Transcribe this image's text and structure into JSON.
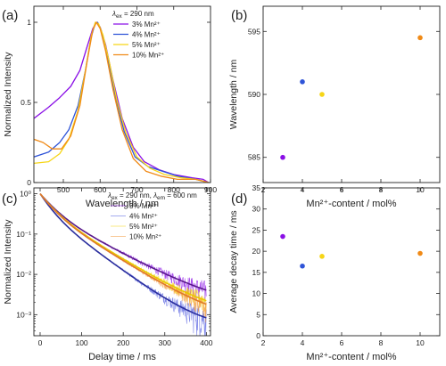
{
  "chart_data": [
    {
      "panel_label": "(a)",
      "type": "line",
      "xlabel": "Wavelength / nm",
      "ylabel": "Normalized Intensity",
      "xlim": [
        420,
        900
      ],
      "ylim": [
        0,
        1.1
      ],
      "x_ticks": [
        500,
        600,
        700,
        800,
        900
      ],
      "y_ticks": [
        0.0,
        0.5,
        1.0
      ],
      "legend_title": "λex = 290 nm",
      "legend_position": "top-right",
      "series": [
        {
          "name": "3% Mn²⁺",
          "color": "#8a10e6",
          "points": [
            [
              420,
              0.4
            ],
            [
              460,
              0.47
            ],
            [
              490,
              0.53
            ],
            [
              520,
              0.6
            ],
            [
              545,
              0.7
            ],
            [
              565,
              0.85
            ],
            [
              580,
              0.96
            ],
            [
              590,
              1.0
            ],
            [
              600,
              0.97
            ],
            [
              615,
              0.86
            ],
            [
              635,
              0.64
            ],
            [
              660,
              0.4
            ],
            [
              690,
              0.22
            ],
            [
              720,
              0.13
            ],
            [
              760,
              0.08
            ],
            [
              800,
              0.05
            ],
            [
              850,
              0.03
            ],
            [
              880,
              0.02
            ],
            [
              895,
              0.0
            ]
          ]
        },
        {
          "name": "4% Mn²⁺",
          "color": "#2f54d8",
          "points": [
            [
              420,
              0.16
            ],
            [
              460,
              0.19
            ],
            [
              490,
              0.25
            ],
            [
              515,
              0.33
            ],
            [
              540,
              0.48
            ],
            [
              560,
              0.7
            ],
            [
              575,
              0.9
            ],
            [
              586,
              0.99
            ],
            [
              593,
              1.0
            ],
            [
              603,
              0.95
            ],
            [
              620,
              0.78
            ],
            [
              640,
              0.55
            ],
            [
              665,
              0.32
            ],
            [
              695,
              0.16
            ],
            [
              730,
              0.1
            ],
            [
              770,
              0.07
            ],
            [
              810,
              0.04
            ],
            [
              860,
              0.02
            ],
            [
              895,
              0.0
            ]
          ]
        },
        {
          "name": "5% Mn²⁺",
          "color": "#f6d516",
          "points": [
            [
              420,
              0.12
            ],
            [
              460,
              0.13
            ],
            [
              490,
              0.18
            ],
            [
              515,
              0.27
            ],
            [
              540,
              0.45
            ],
            [
              560,
              0.7
            ],
            [
              576,
              0.92
            ],
            [
              587,
              1.0
            ],
            [
              596,
              0.99
            ],
            [
              608,
              0.92
            ],
            [
              625,
              0.75
            ],
            [
              645,
              0.52
            ],
            [
              670,
              0.31
            ],
            [
              700,
              0.16
            ],
            [
              735,
              0.09
            ],
            [
              775,
              0.05
            ],
            [
              820,
              0.03
            ],
            [
              860,
              0.02
            ],
            [
              895,
              0.0
            ]
          ]
        },
        {
          "name": "10% Mn²⁺",
          "color": "#f08a17",
          "points": [
            [
              420,
              0.27
            ],
            [
              445,
              0.25
            ],
            [
              470,
              0.21
            ],
            [
              495,
              0.21
            ],
            [
              520,
              0.29
            ],
            [
              545,
              0.48
            ],
            [
              565,
              0.76
            ],
            [
              580,
              0.95
            ],
            [
              590,
              1.0
            ],
            [
              600,
              0.96
            ],
            [
              615,
              0.82
            ],
            [
              635,
              0.58
            ],
            [
              660,
              0.33
            ],
            [
              690,
              0.15
            ],
            [
              725,
              0.07
            ],
            [
              765,
              0.04
            ],
            [
              810,
              0.02
            ],
            [
              860,
              0.02
            ],
            [
              895,
              0.0
            ]
          ]
        }
      ]
    },
    {
      "panel_label": "(b)",
      "type": "scatter",
      "xlabel": "Mn²⁺-content / mol%",
      "ylabel": "Wavelength / nm",
      "xlim": [
        2,
        11
      ],
      "ylim": [
        583,
        597
      ],
      "x_ticks": [
        2,
        4,
        6,
        8,
        10
      ],
      "y_ticks": [
        585,
        590,
        595
      ],
      "points": [
        {
          "x": 3,
          "y": 585,
          "color": "#8a10e6"
        },
        {
          "x": 4,
          "y": 591,
          "color": "#2f54d8"
        },
        {
          "x": 5,
          "y": 590,
          "color": "#f6d516"
        },
        {
          "x": 10,
          "y": 594.5,
          "color": "#f08a17"
        }
      ]
    },
    {
      "panel_label": "(c)",
      "type": "line",
      "xlabel": "Delay time / ms",
      "ylabel": "Normalized Intensity",
      "xlim": [
        -15,
        410
      ],
      "ylim": [
        0.0003,
        1.4
      ],
      "yscale": "log",
      "x_ticks": [
        0,
        100,
        200,
        300,
        400
      ],
      "y_ticks": [
        0.001,
        0.01,
        0.1,
        1
      ],
      "y_tick_labels": [
        "10⁻³",
        "10⁻²",
        "10⁻¹",
        "10⁰"
      ],
      "legend_title": "λex = 290 nm, λem = 600 nm",
      "legend_position": "top-right",
      "series": [
        {
          "name": "3% Mn²⁺",
          "color": "#8a10e6",
          "fit_color": "#5a1a8c",
          "tau1": 28,
          "tau2": 80,
          "a1": 0.62,
          "offset": 0.0015,
          "noise": 0.55
        },
        {
          "name": "4% Mn²⁺",
          "color": "#5560e0",
          "fit_color": "#2a2e9e",
          "tau1": 22,
          "tau2": 58,
          "a1": 0.62,
          "offset": 0.00045,
          "noise": 0.5
        },
        {
          "name": "5% Mn²⁺",
          "color": "#f6d516",
          "fit_color": "#e8c800",
          "tau1": 26,
          "tau2": 70,
          "a1": 0.6,
          "offset": 0.0009,
          "noise": 0.45
        },
        {
          "name": "10% Mn²⁺",
          "color": "#f39a3c",
          "fit_color": "#e0782a",
          "tau1": 25,
          "tau2": 68,
          "a1": 0.6,
          "offset": 0.0007,
          "noise": 0.5
        }
      ]
    },
    {
      "panel_label": "(d)",
      "type": "scatter",
      "xlabel": "Mn²⁺-content / mol%",
      "ylabel": "Average decay time / ms",
      "xlim": [
        2,
        11
      ],
      "ylim": [
        0,
        35
      ],
      "x_ticks": [
        2,
        4,
        6,
        8,
        10
      ],
      "y_ticks": [
        0,
        5,
        10,
        15,
        20,
        25,
        30,
        35
      ],
      "points": [
        {
          "x": 3,
          "y": 23.5,
          "color": "#8a10e6"
        },
        {
          "x": 4,
          "y": 16.5,
          "color": "#2f54d8"
        },
        {
          "x": 5,
          "y": 18.8,
          "color": "#f6d516"
        },
        {
          "x": 10,
          "y": 19.5,
          "color": "#f08a17"
        }
      ]
    }
  ]
}
